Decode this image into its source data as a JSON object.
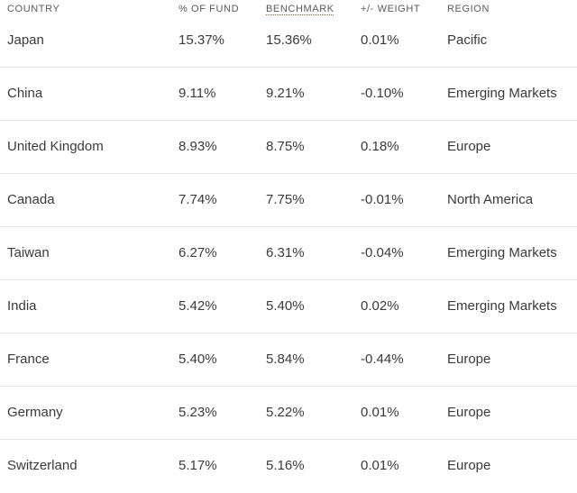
{
  "table": {
    "headers": [
      "COUNTRY",
      "% OF FUND",
      "BENCHMARK",
      "+/- WEIGHT",
      "REGION"
    ],
    "rows": [
      [
        "Japan",
        "15.37%",
        "15.36%",
        "0.01%",
        "Pacific"
      ],
      [
        "China",
        "9.11%",
        "9.21%",
        "-0.10%",
        "Emerging Markets"
      ],
      [
        "United Kingdom",
        "8.93%",
        "8.75%",
        "0.18%",
        "Europe"
      ],
      [
        "Canada",
        "7.74%",
        "7.75%",
        "-0.01%",
        "North America"
      ],
      [
        "Taiwan",
        "6.27%",
        "6.31%",
        "-0.04%",
        "Emerging Markets"
      ],
      [
        "India",
        "5.42%",
        "5.40%",
        "0.02%",
        "Emerging Markets"
      ],
      [
        "France",
        "5.40%",
        "5.84%",
        "-0.44%",
        "Europe"
      ],
      [
        "Germany",
        "5.23%",
        "5.22%",
        "0.01%",
        "Europe"
      ],
      [
        "Switzerland",
        "5.17%",
        "5.16%",
        "0.01%",
        "Europe"
      ]
    ]
  },
  "colors": {
    "text": "#3a3a3a",
    "header_text": "#5a5a5a",
    "divider": "#e6e6e6",
    "benchmark_underline": "#d9362b"
  }
}
